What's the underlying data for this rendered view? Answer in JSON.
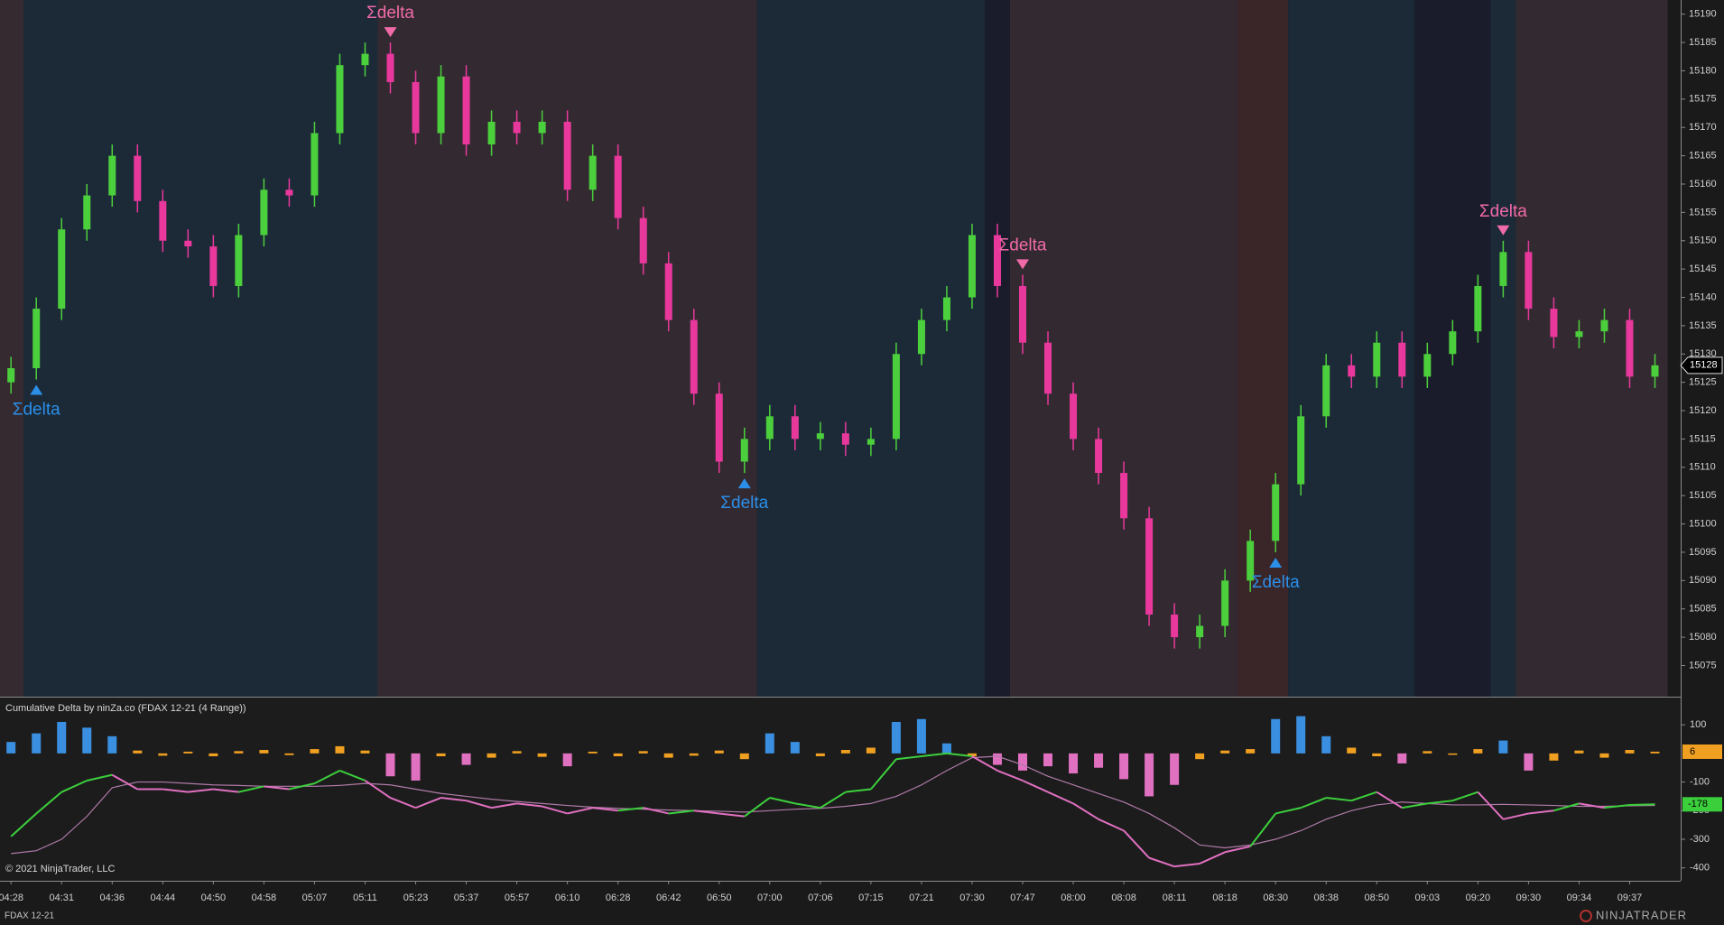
{
  "chart_data": [
    {
      "type": "candlestick",
      "categories": [
        "04:28",
        null,
        "04:31",
        null,
        "04:36",
        null,
        "04:44",
        null,
        "04:50",
        null,
        "04:58",
        null,
        "05:07",
        null,
        "05:11",
        null,
        "05:23",
        null,
        "05:37",
        null,
        "05:57",
        null,
        "06:10",
        null,
        "06:28",
        null,
        "06:42",
        null,
        "06:50",
        null,
        "07:00",
        null,
        "07:06",
        null,
        "07:15",
        null,
        "07:21",
        null,
        "07:30",
        null,
        "07:47",
        null,
        "08:00",
        null,
        "08:08",
        null,
        "08:11",
        null,
        "08:18",
        null,
        "08:30",
        null,
        "08:38",
        null,
        "08:50",
        null,
        "09:03",
        null,
        "09:20",
        null,
        "09:30",
        null,
        "09:34",
        null,
        "09:37",
        null
      ],
      "open": [
        15125,
        15127.5,
        15138,
        15152,
        15158,
        15165,
        15157,
        15150,
        15149,
        15142,
        15151,
        15159,
        15158,
        15169,
        15181,
        15183,
        15178,
        15169,
        15179,
        15167,
        15171,
        15169,
        15171,
        15159,
        15165,
        15154,
        15146,
        15136,
        15123,
        15111,
        15115,
        15119,
        15115,
        15116,
        15114,
        15115,
        15130,
        15136,
        15140,
        15151,
        15142,
        15132,
        15123,
        15115,
        15109,
        15101,
        15084,
        15080,
        15082,
        15090,
        15097,
        15107,
        15119,
        15128,
        15126,
        15132,
        15126,
        15130,
        15134,
        15142,
        15148,
        15138,
        15133,
        15134,
        15136,
        15126
      ],
      "high": [
        15129.5,
        15140,
        15154,
        15160,
        15167,
        15167,
        15159,
        15152,
        15151,
        15153,
        15161,
        15161,
        15171,
        15183,
        15185,
        15185,
        15180,
        15181,
        15181,
        15173,
        15173,
        15173,
        15173,
        15167,
        15167,
        15156,
        15148,
        15138,
        15125,
        15117,
        15121,
        15121,
        15118,
        15118,
        15117,
        15132,
        15138,
        15142,
        15153,
        15153,
        15144,
        15134,
        15125,
        15117,
        15111,
        15103,
        15086,
        15084,
        15092,
        15099,
        15109,
        15121,
        15130,
        15130,
        15134,
        15134,
        15132,
        15136,
        15144,
        15150,
        15150,
        15140,
        15136,
        15138,
        15138,
        15130
      ],
      "low": [
        15123,
        15125.5,
        15136,
        15150,
        15156,
        15155,
        15148,
        15147,
        15140,
        15140,
        15149,
        15156,
        15156,
        15167,
        15179,
        15176,
        15167,
        15167,
        15165,
        15165,
        15167,
        15167,
        15157,
        15157,
        15152,
        15144,
        15134,
        15121,
        15109,
        15109,
        15113,
        15113,
        15113,
        15112,
        15112,
        15113,
        15128,
        15134,
        15138,
        15140,
        15130,
        15121,
        15113,
        15107,
        15099,
        15082,
        15078,
        15078,
        15080,
        15088,
        15095,
        15105,
        15117,
        15124,
        15124,
        15124,
        15124,
        15128,
        15132,
        15140,
        15136,
        15131,
        15131,
        15132,
        15124,
        15124
      ],
      "close": [
        15127.5,
        15138,
        15152,
        15158,
        15165,
        15157,
        15150,
        15149,
        15142,
        15151,
        15159,
        15158,
        15169,
        15181,
        15183,
        15178,
        15169,
        15179,
        15167,
        15171,
        15169,
        15171,
        15159,
        15165,
        15154,
        15146,
        15136,
        15123,
        15111,
        15115,
        15119,
        15115,
        15116,
        15114,
        15115,
        15130,
        15136,
        15140,
        15151,
        15142,
        15132,
        15123,
        15115,
        15109,
        15101,
        15084,
        15080,
        15082,
        15090,
        15097,
        15107,
        15119,
        15128,
        15126,
        15132,
        15126,
        15130,
        15134,
        15142,
        15148,
        15138,
        15133,
        15134,
        15136,
        15126,
        15128
      ],
      "colors": {
        "up": "#4ccf3c",
        "down": "#e8389c"
      },
      "ylim": [
        15069.5,
        15192.5
      ],
      "yticks": [
        15075,
        15080,
        15085,
        15090,
        15095,
        15100,
        15105,
        15110,
        15115,
        15120,
        15125,
        15130,
        15135,
        15140,
        15145,
        15150,
        15155,
        15160,
        15165,
        15170,
        15175,
        15180,
        15185,
        15190
      ],
      "regions": [
        {
          "from": 0,
          "to": 0,
          "color": "#342a30"
        },
        {
          "from": 1,
          "to": 14,
          "color": "#1c2a38"
        },
        {
          "from": 15,
          "to": 29,
          "color": "#332a31"
        },
        {
          "from": 30,
          "to": 38,
          "color": "#1c2a38"
        },
        {
          "from": 39,
          "to": 39,
          "color": "#1b1c2b"
        },
        {
          "from": 40,
          "to": 48,
          "color": "#332a31"
        },
        {
          "from": 49,
          "to": 50,
          "color": "#3a2529"
        },
        {
          "from": 51,
          "to": 55,
          "color": "#1c2a38"
        },
        {
          "from": 56,
          "to": 58,
          "color": "#1b1c2b"
        },
        {
          "from": 59,
          "to": 59,
          "color": "#1c2a38"
        },
        {
          "from": 60,
          "to": 65,
          "color": "#332a31"
        }
      ],
      "signals": [
        {
          "index": 1,
          "direction": "up",
          "label": "Σdelta"
        },
        {
          "index": 15,
          "direction": "down",
          "label": "Σdelta"
        },
        {
          "index": 29,
          "direction": "up",
          "label": "Σdelta"
        },
        {
          "index": 40,
          "direction": "down",
          "label": "Σdelta"
        },
        {
          "index": 50,
          "direction": "up",
          "label": "Σdelta"
        },
        {
          "index": 59,
          "direction": "down",
          "label": "Σdelta"
        }
      ],
      "signal_colors": {
        "up": "#2b8fe8",
        "down": "#f06aa8"
      }
    },
    {
      "type": "combo",
      "title": "Cumulative Delta by ninZa.co (FDAX 12-21 (4 Range))",
      "ylim": [
        -445,
        195
      ],
      "yticks": [
        100,
        -100,
        -200,
        -300,
        -400
      ],
      "series": [
        {
          "type": "bar",
          "values": [
            40,
            70,
            110,
            90,
            60,
            10,
            -8,
            6,
            -10,
            8,
            12,
            -6,
            15,
            25,
            10,
            -80,
            -95,
            -10,
            -40,
            -15,
            8,
            -12,
            -45,
            6,
            -10,
            8,
            -15,
            -8,
            10,
            -20,
            70,
            40,
            -10,
            12,
            20,
            110,
            120,
            35,
            -10,
            -40,
            -60,
            -45,
            -70,
            -50,
            -90,
            -150,
            -110,
            -20,
            10,
            15,
            120,
            130,
            60,
            20,
            -10,
            -35,
            8,
            -5,
            15,
            45,
            -60,
            -25,
            10,
            -15,
            12,
            6
          ],
          "colors": [
            "#3a8fe0",
            "#3a8fe0",
            "#3a8fe0",
            "#3a8fe0",
            "#3a8fe0",
            "#f0a020",
            "#f0a020",
            "#f0a020",
            "#f0a020",
            "#f0a020",
            "#f0a020",
            "#f0a020",
            "#f0a020",
            "#f0a020",
            "#f0a020",
            "#e070c0",
            "#e070c0",
            "#f0a020",
            "#e070c0",
            "#f0a020",
            "#f0a020",
            "#f0a020",
            "#e070c0",
            "#f0a020",
            "#f0a020",
            "#f0a020",
            "#f0a020",
            "#f0a020",
            "#f0a020",
            "#f0a020",
            "#3a8fe0",
            "#3a8fe0",
            "#f0a020",
            "#f0a020",
            "#f0a020",
            "#3a8fe0",
            "#3a8fe0",
            "#3a8fe0",
            "#f0a020",
            "#e070c0",
            "#e070c0",
            "#e070c0",
            "#e070c0",
            "#e070c0",
            "#e070c0",
            "#e070c0",
            "#e070c0",
            "#f0a020",
            "#f0a020",
            "#f0a020",
            "#3a8fe0",
            "#3a8fe0",
            "#3a8fe0",
            "#f0a020",
            "#f0a020",
            "#e070c0",
            "#f0a020",
            "#f0a020",
            "#f0a020",
            "#3a8fe0",
            "#e070c0",
            "#f0a020",
            "#f0a020",
            "#f0a020",
            "#f0a020",
            "#f0a020"
          ]
        },
        {
          "type": "line",
          "values": [
            -290,
            -210,
            -135,
            -95,
            -75,
            -125,
            -125,
            -135,
            -125,
            -135,
            -115,
            -125,
            -105,
            -60,
            -95,
            -155,
            -190,
            -155,
            -165,
            -190,
            -175,
            -185,
            -210,
            -190,
            -200,
            -190,
            -210,
            -200,
            -210,
            -220,
            -155,
            -175,
            -190,
            -135,
            -125,
            -20,
            -10,
            0,
            -10,
            -60,
            -95,
            -135,
            -175,
            -230,
            -270,
            -365,
            -395,
            -385,
            -345,
            -325,
            -210,
            -190,
            -155,
            -165,
            -135,
            -190,
            -175,
            -165,
            -135,
            -230,
            -210,
            -200,
            -175,
            -190,
            -180,
            -178
          ],
          "color_up": "#3ccf3c",
          "color_down": "#e070c0"
        },
        {
          "type": "line",
          "values": [
            -350,
            -340,
            -300,
            -220,
            -120,
            -100,
            -100,
            -105,
            -110,
            -112,
            -115,
            -115,
            -115,
            -112,
            -105,
            -110,
            -125,
            -140,
            -150,
            -160,
            -168,
            -175,
            -182,
            -188,
            -192,
            -195,
            -198,
            -200,
            -202,
            -205,
            -200,
            -195,
            -192,
            -185,
            -175,
            -150,
            -110,
            -60,
            -15,
            -10,
            -40,
            -80,
            -110,
            -140,
            -170,
            -210,
            -260,
            -320,
            -330,
            -320,
            -300,
            -270,
            -230,
            -200,
            -180,
            -170,
            -175,
            -180,
            -180,
            -178,
            -180,
            -182,
            -185,
            -185,
            -183,
            -182
          ],
          "color": "#b07aa8"
        }
      ]
    }
  ],
  "footer": {
    "copyright": "© 2021 NinjaTrader, LLC",
    "instrument": "FDAX 12-21",
    "brand": "NINJATRADER"
  }
}
